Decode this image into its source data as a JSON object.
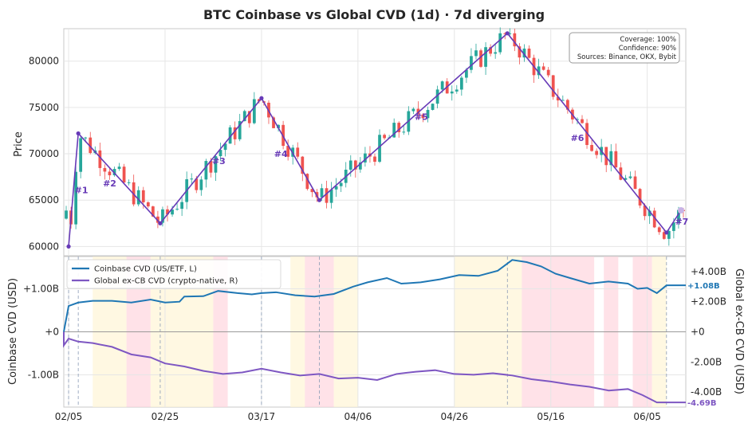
{
  "title": "BTC Coinbase vs Global CVD (1d)  ·  7d diverging",
  "colors": {
    "up": "#26a69a",
    "down": "#ef5350",
    "zigzag": "#673ab7",
    "coinbase": "#1f77b4",
    "global": "#7e57c2",
    "bear_band": "#ffd6de",
    "bull_band": "#fff5d6"
  },
  "chart_data": [
    {
      "type": "candlestick",
      "ylabel": "Price",
      "ylim": [
        59000,
        83500
      ],
      "y_ticks": [
        60000,
        65000,
        70000,
        75000,
        80000
      ],
      "y_tick_labels": [
        "60000",
        "65000",
        "70000",
        "75000",
        "80000"
      ],
      "x_range": [
        "2025-02-04",
        "2025-06-13"
      ],
      "zigzag": [
        {
          "date": "2025-02-05",
          "price": 60000,
          "label": "#1"
        },
        {
          "date": "2025-02-07",
          "price": 72200,
          "label": "#2"
        },
        {
          "date": "2025-02-24",
          "price": 62500,
          "label": "#3"
        },
        {
          "date": "2025-03-17",
          "price": 76000,
          "label": "#4"
        },
        {
          "date": "2025-03-29",
          "price": 65000,
          "label": "#5"
        },
        {
          "date": "2025-05-07",
          "price": 83000,
          "label": "#6"
        },
        {
          "date": "2025-06-09",
          "price": 61500,
          "label": "#7"
        },
        {
          "date": "2025-06-12",
          "price": 63900,
          "label": ""
        }
      ],
      "info_box": [
        "Coverage: 100%",
        "Confidence: 90%",
        "Sources: Binance, OKX, Bybit"
      ]
    },
    {
      "type": "line",
      "ylabel_left": "Coinbase CVD (USD)",
      "ylabel_right": "Global ex-CB CVD (USD)",
      "ylim_left": [
        -1.75,
        1.75
      ],
      "left_ticks": [
        1,
        0,
        -1
      ],
      "left_tick_labels": [
        "+1.00B",
        "+0",
        "-1.00B"
      ],
      "ylim_right": [
        -5.0,
        5.0
      ],
      "right_ticks": [
        4,
        2,
        0,
        -2,
        -4
      ],
      "right_tick_labels": [
        "+4.00B",
        "+2.00B",
        "+0",
        "-2.00B",
        "-4.00B"
      ],
      "x_ticks": [
        "2025-02-05",
        "2025-02-25",
        "2025-03-17",
        "2025-04-06",
        "2025-04-26",
        "2025-05-16",
        "2025-06-05"
      ],
      "x_tick_labels": [
        "02/05",
        "02/25",
        "03/17",
        "04/06",
        "04/26",
        "05/16",
        "06/05"
      ],
      "series": [
        {
          "name": "Coinbase CVD (US/ETF, L)",
          "end_label": "+1.08B",
          "points": [
            [
              "2025-02-04",
              0.0
            ],
            [
              "2025-02-05",
              0.6
            ],
            [
              "2025-02-07",
              0.68
            ],
            [
              "2025-02-10",
              0.72
            ],
            [
              "2025-02-14",
              0.72
            ],
            [
              "2025-02-18",
              0.68
            ],
            [
              "2025-02-22",
              0.75
            ],
            [
              "2025-02-25",
              0.68
            ],
            [
              "2025-02-28",
              0.7
            ],
            [
              "2025-03-01",
              0.82
            ],
            [
              "2025-03-05",
              0.83
            ],
            [
              "2025-03-08",
              0.95
            ],
            [
              "2025-03-12",
              0.9
            ],
            [
              "2025-03-15",
              0.87
            ],
            [
              "2025-03-17",
              0.9
            ],
            [
              "2025-03-20",
              0.92
            ],
            [
              "2025-03-24",
              0.85
            ],
            [
              "2025-03-28",
              0.82
            ],
            [
              "2025-04-01",
              0.88
            ],
            [
              "2025-04-05",
              1.05
            ],
            [
              "2025-04-08",
              1.15
            ],
            [
              "2025-04-12",
              1.25
            ],
            [
              "2025-04-15",
              1.12
            ],
            [
              "2025-04-19",
              1.15
            ],
            [
              "2025-04-23",
              1.22
            ],
            [
              "2025-04-27",
              1.32
            ],
            [
              "2025-05-01",
              1.3
            ],
            [
              "2025-05-05",
              1.42
            ],
            [
              "2025-05-08",
              1.67
            ],
            [
              "2025-05-11",
              1.62
            ],
            [
              "2025-05-14",
              1.52
            ],
            [
              "2025-05-17",
              1.35
            ],
            [
              "2025-05-20",
              1.25
            ],
            [
              "2025-05-24",
              1.12
            ],
            [
              "2025-05-28",
              1.17
            ],
            [
              "2025-06-01",
              1.12
            ],
            [
              "2025-06-03",
              1.0
            ],
            [
              "2025-06-05",
              1.02
            ],
            [
              "2025-06-07",
              0.9
            ],
            [
              "2025-06-09",
              1.08
            ],
            [
              "2025-06-13",
              1.08
            ]
          ]
        },
        {
          "name": "Global ex-CB CVD (crypto-native, R)",
          "end_label": "-4.69B",
          "points": [
            [
              "2025-02-04",
              0.0
            ],
            [
              "2025-02-04",
              -0.9
            ],
            [
              "2025-02-05",
              -0.45
            ],
            [
              "2025-02-07",
              -0.65
            ],
            [
              "2025-02-10",
              -0.75
            ],
            [
              "2025-02-14",
              -1.0
            ],
            [
              "2025-02-18",
              -1.5
            ],
            [
              "2025-02-22",
              -1.7
            ],
            [
              "2025-02-25",
              -2.1
            ],
            [
              "2025-03-01",
              -2.3
            ],
            [
              "2025-03-05",
              -2.6
            ],
            [
              "2025-03-09",
              -2.8
            ],
            [
              "2025-03-13",
              -2.7
            ],
            [
              "2025-03-17",
              -2.45
            ],
            [
              "2025-03-21",
              -2.7
            ],
            [
              "2025-03-25",
              -2.9
            ],
            [
              "2025-03-29",
              -2.8
            ],
            [
              "2025-04-02",
              -3.1
            ],
            [
              "2025-04-06",
              -3.05
            ],
            [
              "2025-04-10",
              -3.2
            ],
            [
              "2025-04-14",
              -2.8
            ],
            [
              "2025-04-18",
              -2.65
            ],
            [
              "2025-04-22",
              -2.55
            ],
            [
              "2025-04-26",
              -2.8
            ],
            [
              "2025-04-30",
              -2.85
            ],
            [
              "2025-05-04",
              -2.75
            ],
            [
              "2025-05-08",
              -2.9
            ],
            [
              "2025-05-12",
              -3.15
            ],
            [
              "2025-05-16",
              -3.3
            ],
            [
              "2025-05-20",
              -3.5
            ],
            [
              "2025-05-24",
              -3.65
            ],
            [
              "2025-05-28",
              -3.9
            ],
            [
              "2025-06-01",
              -3.8
            ],
            [
              "2025-06-04",
              -4.2
            ],
            [
              "2025-06-07",
              -4.69
            ],
            [
              "2025-06-13",
              -4.69
            ]
          ]
        }
      ],
      "bands": [
        {
          "from": "2025-02-10",
          "to": "2025-02-17",
          "kind": "bull"
        },
        {
          "from": "2025-02-17",
          "to": "2025-02-22",
          "kind": "bear"
        },
        {
          "from": "2025-02-22",
          "to": "2025-03-07",
          "kind": "bull"
        },
        {
          "from": "2025-03-07",
          "to": "2025-03-10",
          "kind": "bear"
        },
        {
          "from": "2025-03-23",
          "to": "2025-03-26",
          "kind": "bull"
        },
        {
          "from": "2025-03-26",
          "to": "2025-04-01",
          "kind": "bear"
        },
        {
          "from": "2025-04-01",
          "to": "2025-04-06",
          "kind": "bull"
        },
        {
          "from": "2025-04-26",
          "to": "2025-05-10",
          "kind": "bull"
        },
        {
          "from": "2025-05-10",
          "to": "2025-05-25",
          "kind": "bear"
        },
        {
          "from": "2025-05-27",
          "to": "2025-05-30",
          "kind": "bear"
        },
        {
          "from": "2025-06-02",
          "to": "2025-06-06",
          "kind": "bear"
        },
        {
          "from": "2025-06-06",
          "to": "2025-06-09",
          "kind": "bull"
        }
      ],
      "pivot_lines": [
        "2025-02-05",
        "2025-02-07",
        "2025-02-24",
        "2025-03-17",
        "2025-03-29",
        "2025-05-07",
        "2025-06-09"
      ]
    }
  ]
}
